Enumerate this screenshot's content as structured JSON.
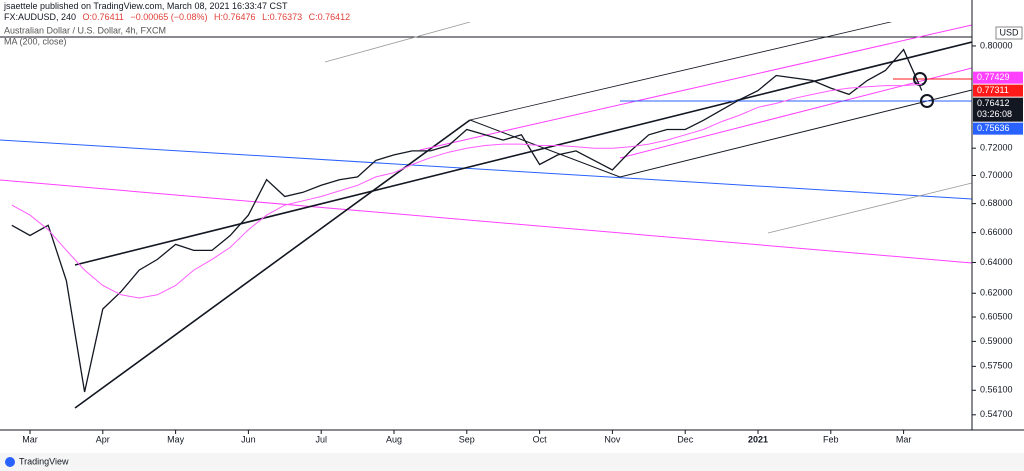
{
  "header": {
    "publisher": "jsaettele published on TradingView.com, March 08, 2021 16:33:47 CST",
    "symbol": "FX:AUDUSD, 240",
    "open": "O:0.76411",
    "change": "−0.00065 (−0.08%)",
    "high": "H:0.76476",
    "low": "L:0.76373",
    "close": "C:0.76412"
  },
  "footer": {
    "brand": "TradingView"
  },
  "chart_data": {
    "type": "line",
    "categories": [
      null,
      "Mar",
      null,
      null,
      null,
      "Apr",
      null,
      null,
      null,
      "May",
      null,
      null,
      null,
      "Jun",
      null,
      null,
      null,
      "Jul",
      null,
      null,
      null,
      "Aug",
      null,
      null,
      null,
      "Sep",
      null,
      null,
      null,
      "Oct",
      null,
      null,
      null,
      "Nov",
      null,
      null,
      null,
      "Dec",
      null,
      null,
      null,
      "2021",
      null,
      null,
      null,
      "Feb",
      null,
      null,
      null,
      "Mar",
      null
    ],
    "series": [
      {
        "name": "Australian Dollar / U.S. Dollar, 4h, FXCM",
        "color": "#131722",
        "values": [
          0.665,
          0.658,
          0.665,
          0.628,
          0.56,
          0.61,
          0.621,
          0.635,
          0.642,
          0.652,
          0.648,
          0.648,
          0.658,
          0.672,
          0.697,
          0.685,
          0.688,
          0.693,
          0.697,
          0.699,
          0.711,
          0.715,
          0.718,
          0.718,
          0.722,
          0.734,
          0.73,
          0.726,
          0.73,
          0.708,
          0.715,
          0.718,
          0.711,
          0.704,
          0.718,
          0.73,
          0.734,
          0.734,
          0.741,
          0.749,
          0.757,
          0.764,
          0.776,
          0.774,
          0.772,
          0.766,
          0.761,
          0.772,
          0.78,
          0.797,
          0.76412
        ]
      },
      {
        "name": "MA (200, close)",
        "color": "#ff5cff",
        "values": [
          0.679,
          0.672,
          0.662,
          0.648,
          0.635,
          0.625,
          0.619,
          0.617,
          0.619,
          0.625,
          0.635,
          0.642,
          0.65,
          0.662,
          0.672,
          0.679,
          0.682,
          0.685,
          0.689,
          0.693,
          0.699,
          0.702,
          0.708,
          0.713,
          0.717,
          0.72,
          0.722,
          0.723,
          0.723,
          0.722,
          0.722,
          0.721,
          0.72,
          0.72,
          0.721,
          0.723,
          0.726,
          0.73,
          0.734,
          0.74,
          0.745,
          0.751,
          0.754,
          0.758,
          0.761,
          0.764,
          0.766,
          0.767,
          0.768,
          0.768,
          0.769
        ]
      }
    ],
    "log_scale": true,
    "ylim": [
      0.5385,
      0.82
    ],
    "yticks": [
      {
        "value": 0.8,
        "label": "0.80000"
      },
      {
        "value": 0.72,
        "label": "0.72000"
      },
      {
        "value": 0.7,
        "label": "0.70000"
      },
      {
        "value": 0.68,
        "label": "0.68000"
      },
      {
        "value": 0.66,
        "label": "0.66000"
      },
      {
        "value": 0.64,
        "label": "0.64000"
      },
      {
        "value": 0.62,
        "label": "0.62000"
      },
      {
        "value": 0.605,
        "label": "0.60500"
      },
      {
        "value": 0.59,
        "label": "0.59000"
      },
      {
        "value": 0.575,
        "label": "0.57500"
      },
      {
        "value": 0.561,
        "label": "0.56100"
      },
      {
        "value": 0.547,
        "label": "0.54700"
      }
    ],
    "currency": "USD",
    "price_labels": [
      {
        "value": 0.77429,
        "label": "0.77429",
        "color": "#ff40ff"
      },
      {
        "value": 0.77311,
        "label": "0.77311",
        "color": "#ff1a1a"
      },
      {
        "value": 0.76412,
        "label": "0.76412",
        "countdown": "03:26:08",
        "color": "#131722"
      },
      {
        "value": 0.75636,
        "label": "0.75636",
        "color": "#2962ff"
      }
    ]
  }
}
